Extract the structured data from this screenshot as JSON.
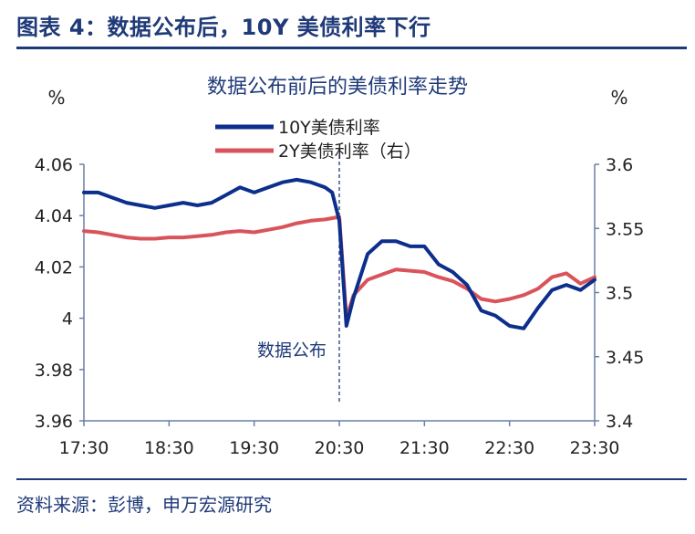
{
  "figure_title": "图表 4：数据公布后，10Y 美债利率下行",
  "source": "资料来源：彭博，申万宏源研究",
  "chart_data": {
    "type": "line",
    "title": "数据公布前后的美债利率走势",
    "ylabel_left": "%",
    "ylabel_right": "%",
    "x_ticks": [
      "17:30",
      "18:30",
      "19:30",
      "20:30",
      "21:30",
      "22:30",
      "23:30"
    ],
    "ylim_left": [
      3.96,
      4.06
    ],
    "yticks_left": [
      "3.96",
      "3.98",
      "4",
      "4.02",
      "4.04",
      "4.06"
    ],
    "ylim_right": [
      3.4,
      3.6
    ],
    "yticks_right": [
      "3.4",
      "3.45",
      "3.5",
      "3.55",
      "3.6"
    ],
    "annotation": {
      "label": "数据公布",
      "x": "20:30"
    },
    "legend_position": "top-center",
    "grid": false,
    "series": [
      {
        "name": "10Y美债利率",
        "axis": "left",
        "color": "#0d2f8c",
        "x": [
          "17:30",
          "17:40",
          "17:50",
          "18:00",
          "18:10",
          "18:20",
          "18:30",
          "18:40",
          "18:50",
          "19:00",
          "19:10",
          "19:20",
          "19:30",
          "19:40",
          "19:50",
          "20:00",
          "20:10",
          "20:20",
          "20:25",
          "20:30",
          "20:35",
          "20:40",
          "20:50",
          "21:00",
          "21:10",
          "21:20",
          "21:30",
          "21:40",
          "21:50",
          "22:00",
          "22:10",
          "22:20",
          "22:30",
          "22:40",
          "22:50",
          "23:00",
          "23:10",
          "23:20",
          "23:30"
        ],
        "values": [
          4.049,
          4.049,
          4.047,
          4.045,
          4.044,
          4.043,
          4.044,
          4.045,
          4.044,
          4.045,
          4.048,
          4.051,
          4.049,
          4.051,
          4.053,
          4.054,
          4.053,
          4.051,
          4.049,
          4.038,
          3.997,
          4.008,
          4.025,
          4.03,
          4.03,
          4.028,
          4.028,
          4.021,
          4.018,
          4.013,
          4.003,
          4.001,
          3.997,
          3.996,
          4.004,
          4.011,
          4.013,
          4.011,
          4.015
        ]
      },
      {
        "name": "2Y美债利率（右）",
        "axis": "right",
        "color": "#d9545a",
        "x": [
          "17:30",
          "17:40",
          "17:50",
          "18:00",
          "18:10",
          "18:20",
          "18:30",
          "18:40",
          "18:50",
          "19:00",
          "19:10",
          "19:20",
          "19:30",
          "19:40",
          "19:50",
          "20:00",
          "20:10",
          "20:20",
          "20:25",
          "20:30",
          "20:35",
          "20:40",
          "20:50",
          "21:00",
          "21:10",
          "21:20",
          "21:30",
          "21:40",
          "21:50",
          "22:00",
          "22:10",
          "22:20",
          "22:30",
          "22:40",
          "22:50",
          "23:00",
          "23:10",
          "23:20",
          "23:30"
        ],
        "values": [
          3.548,
          3.547,
          3.545,
          3.543,
          3.542,
          3.542,
          3.543,
          3.543,
          3.544,
          3.545,
          3.547,
          3.548,
          3.547,
          3.549,
          3.551,
          3.554,
          3.556,
          3.557,
          3.558,
          3.559,
          3.48,
          3.498,
          3.51,
          3.514,
          3.518,
          3.517,
          3.516,
          3.512,
          3.509,
          3.503,
          3.495,
          3.493,
          3.495,
          3.498,
          3.503,
          3.512,
          3.515,
          3.507,
          3.512
        ]
      }
    ]
  }
}
